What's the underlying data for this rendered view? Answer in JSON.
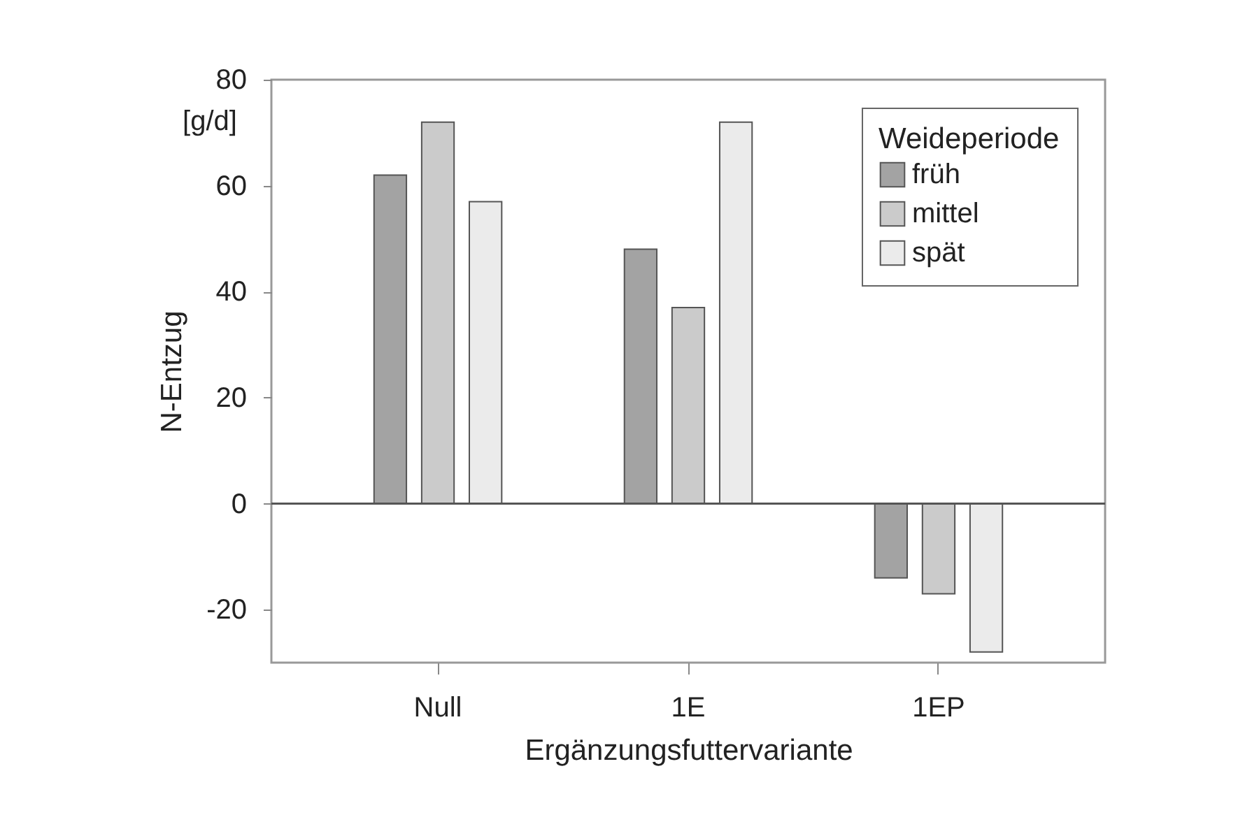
{
  "chart_data": {
    "type": "bar",
    "xlabel": "Ergänzungsfuttervariante",
    "ylabel": "N-Entzug",
    "legend_title": "Weideperiode",
    "annotations": [
      "[g/d]"
    ],
    "categories": [
      "Null",
      "1E",
      "1EP"
    ],
    "series": [
      {
        "name": "früh",
        "color": "#a3a3a3",
        "values": [
          62,
          48,
          -14
        ]
      },
      {
        "name": "mittel",
        "color": "#cbcbcb",
        "values": [
          72,
          37,
          -17
        ]
      },
      {
        "name": "spät",
        "color": "#ebebeb",
        "values": [
          57,
          72,
          -28
        ]
      }
    ],
    "ylim": [
      -30,
      80
    ],
    "yticks": [
      -20,
      0,
      20,
      40,
      60,
      80
    ],
    "grid": false,
    "legend": "top right",
    "ref_lines": [
      {
        "axis": "y",
        "value": 0,
        "color": "#555555"
      }
    ]
  }
}
